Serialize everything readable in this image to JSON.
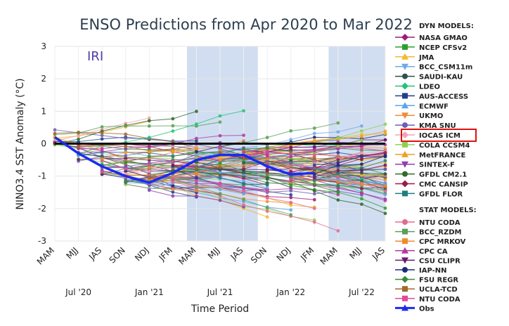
{
  "chart_data": {
    "type": "line",
    "title": "ENSO Predictions from Apr 2020 to Mar 2022",
    "ylabel": "NINO3.4 SST Anomaly (°C)",
    "xlabel": "Time Period",
    "ylim": [
      -3,
      3
    ],
    "yticks": [
      "3",
      "2",
      "1",
      "0",
      "-1",
      "-2",
      "-3"
    ],
    "season_ticks": [
      "MAM",
      "MJJ",
      "JAS",
      "SON",
      "NDJ",
      "JFM",
      "MAM",
      "MJJ",
      "JAS",
      "SON",
      "NDJ",
      "JFM",
      "MAM",
      "MJJ",
      "JAS"
    ],
    "month_ticks": [
      {
        "label": "Jul '20",
        "index": 1
      },
      {
        "label": "Jan '21",
        "index": 4
      },
      {
        "label": "Jul '21",
        "index": 7
      },
      {
        "label": "Jan '22",
        "index": 10
      },
      {
        "label": "Jul '22",
        "index": 13
      }
    ],
    "annotation": "IRI",
    "shaded_ranges": [
      [
        5.6,
        8.6
      ],
      [
        11.6,
        14.0
      ]
    ],
    "zero_line": true,
    "legend_placement": "right",
    "legend_dyn_header": "DYN MODELS:",
    "legend_stat_header": "STAT MODELS:",
    "highlighted_model": "IOCAS ICM",
    "highlight_color": "#e01010",
    "obs": {
      "name": "Obs",
      "color": "#1a2cf0",
      "values": [
        0.2,
        -0.3,
        -0.7,
        -1.0,
        -1.2,
        -0.9,
        -0.5,
        -0.35,
        -0.35,
        -0.7,
        -0.95,
        -0.9
      ]
    },
    "dyn_models": [
      {
        "name": "NASA GMAO",
        "color": "#a01a7d",
        "marker": "diamond"
      },
      {
        "name": "NCEP CFSv2",
        "color": "#2ca02c",
        "marker": "square"
      },
      {
        "name": "JMA",
        "color": "#f5b82e",
        "marker": "triangle"
      },
      {
        "name": "BCC_CSM11m",
        "color": "#6fa8e8",
        "marker": "triangle-down"
      },
      {
        "name": "SAUDI-KAU",
        "color": "#2f4f4f",
        "marker": "circle"
      },
      {
        "name": "LDEO",
        "color": "#22c47a",
        "marker": "diamond"
      },
      {
        "name": "AUS-ACCESS",
        "color": "#1f3f8f",
        "marker": "square"
      },
      {
        "name": "ECMWF",
        "color": "#5aa5f0",
        "marker": "triangle"
      },
      {
        "name": "UKMO",
        "color": "#f08a3c",
        "marker": "triangle-down"
      },
      {
        "name": "KMA SNU",
        "color": "#6c5fb0",
        "marker": "circle"
      },
      {
        "name": "IOCAS ICM",
        "color": "#f2a3b3",
        "marker": "diamond"
      },
      {
        "name": "COLA CCSM4",
        "color": "#8fd14f",
        "marker": "square"
      },
      {
        "name": "MetFRANCE",
        "color": "#f0a020",
        "marker": "triangle"
      },
      {
        "name": "SINTEX-F",
        "color": "#8e3fb0",
        "marker": "triangle-down"
      },
      {
        "name": "GFDL CM2.1",
        "color": "#2e6b2e",
        "marker": "circle"
      },
      {
        "name": "CMC CANSIP",
        "color": "#9a1a4a",
        "marker": "diamond"
      },
      {
        "name": "GFDL FLOR",
        "color": "#1f7f7f",
        "marker": "square"
      }
    ],
    "stat_models": [
      {
        "name": "NTU CODA",
        "color": "#e36b8f",
        "marker": "circle"
      },
      {
        "name": "BCC_RZDM",
        "color": "#5aa05a",
        "marker": "square"
      },
      {
        "name": "CPC MRKOV",
        "color": "#f08a2c",
        "marker": "square"
      },
      {
        "name": "CPC CA",
        "color": "#b03aa0",
        "marker": "triangle"
      },
      {
        "name": "CSU CLIPR",
        "color": "#6a1a6a",
        "marker": "triangle-down"
      },
      {
        "name": "IAP-NN",
        "color": "#1a2a7a",
        "marker": "circle"
      },
      {
        "name": "FSU REGR",
        "color": "#3a8a3a",
        "marker": "diamond"
      },
      {
        "name": "UCLA-TCD",
        "color": "#a06a2a",
        "marker": "square"
      },
      {
        "name": "NTU CODA",
        "color": "#e04a9a",
        "marker": "square"
      }
    ]
  }
}
